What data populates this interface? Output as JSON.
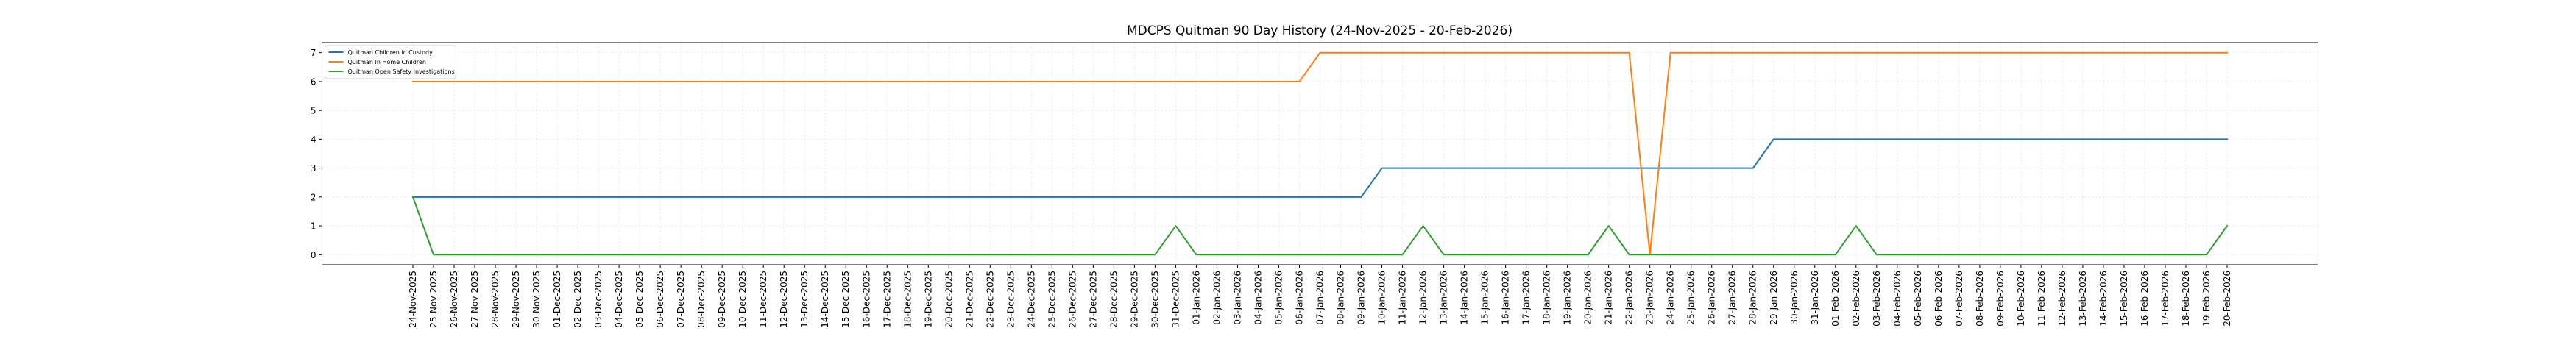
{
  "chart_data": {
    "type": "line",
    "title": "MDCPS Quitman 90 Day History (24-Nov-2025 - 20-Feb-2026)",
    "xlabel": "",
    "ylabel": "",
    "ylim": [
      -0.35,
      7.35
    ],
    "yticks": [
      0,
      1,
      2,
      3,
      4,
      5,
      6,
      7
    ],
    "grid": true,
    "legend_position": "top-left",
    "x": [
      "24-Nov-2025",
      "25-Nov-2025",
      "26-Nov-2025",
      "27-Nov-2025",
      "28-Nov-2025",
      "29-Nov-2025",
      "30-Nov-2025",
      "01-Dec-2025",
      "02-Dec-2025",
      "03-Dec-2025",
      "04-Dec-2025",
      "05-Dec-2025",
      "06-Dec-2025",
      "07-Dec-2025",
      "08-Dec-2025",
      "09-Dec-2025",
      "10-Dec-2025",
      "11-Dec-2025",
      "12-Dec-2025",
      "13-Dec-2025",
      "14-Dec-2025",
      "15-Dec-2025",
      "16-Dec-2025",
      "17-Dec-2025",
      "18-Dec-2025",
      "19-Dec-2025",
      "20-Dec-2025",
      "21-Dec-2025",
      "22-Dec-2025",
      "23-Dec-2025",
      "24-Dec-2025",
      "25-Dec-2025",
      "26-Dec-2025",
      "27-Dec-2025",
      "28-Dec-2025",
      "29-Dec-2025",
      "30-Dec-2025",
      "31-Dec-2025",
      "01-Jan-2026",
      "02-Jan-2026",
      "03-Jan-2026",
      "04-Jan-2026",
      "05-Jan-2026",
      "06-Jan-2026",
      "07-Jan-2026",
      "08-Jan-2026",
      "09-Jan-2026",
      "10-Jan-2026",
      "11-Jan-2026",
      "12-Jan-2026",
      "13-Jan-2026",
      "14-Jan-2026",
      "15-Jan-2026",
      "16-Jan-2026",
      "17-Jan-2026",
      "18-Jan-2026",
      "19-Jan-2026",
      "20-Jan-2026",
      "21-Jan-2026",
      "22-Jan-2026",
      "23-Jan-2026",
      "24-Jan-2026",
      "25-Jan-2026",
      "26-Jan-2026",
      "27-Jan-2026",
      "28-Jan-2026",
      "29-Jan-2026",
      "30-Jan-2026",
      "31-Jan-2026",
      "01-Feb-2026",
      "02-Feb-2026",
      "03-Feb-2026",
      "04-Feb-2026",
      "05-Feb-2026",
      "06-Feb-2026",
      "07-Feb-2026",
      "08-Feb-2026",
      "09-Feb-2026",
      "10-Feb-2026",
      "11-Feb-2026",
      "12-Feb-2026",
      "13-Feb-2026",
      "14-Feb-2026",
      "15-Feb-2026",
      "16-Feb-2026",
      "17-Feb-2026",
      "18-Feb-2026",
      "19-Feb-2026",
      "20-Feb-2026"
    ],
    "series": [
      {
        "name": "Quitman Children in Custody",
        "color": "#1f77b4",
        "values": [
          2,
          2,
          2,
          2,
          2,
          2,
          2,
          2,
          2,
          2,
          2,
          2,
          2,
          2,
          2,
          2,
          2,
          2,
          2,
          2,
          2,
          2,
          2,
          2,
          2,
          2,
          2,
          2,
          2,
          2,
          2,
          2,
          2,
          2,
          2,
          2,
          2,
          2,
          2,
          2,
          2,
          2,
          2,
          2,
          2,
          2,
          2,
          3,
          3,
          3,
          3,
          3,
          3,
          3,
          3,
          3,
          3,
          3,
          3,
          3,
          3,
          3,
          3,
          3,
          3,
          3,
          4,
          4,
          4,
          4,
          4,
          4,
          4,
          4,
          4,
          4,
          4,
          4,
          4,
          4,
          4,
          4,
          4,
          4,
          4,
          4,
          4,
          4,
          4
        ]
      },
      {
        "name": "Quitman In Home Children",
        "color": "#ff7f0e",
        "values": [
          6,
          6,
          6,
          6,
          6,
          6,
          6,
          6,
          6,
          6,
          6,
          6,
          6,
          6,
          6,
          6,
          6,
          6,
          6,
          6,
          6,
          6,
          6,
          6,
          6,
          6,
          6,
          6,
          6,
          6,
          6,
          6,
          6,
          6,
          6,
          6,
          6,
          6,
          6,
          6,
          6,
          6,
          6,
          6,
          7,
          7,
          7,
          7,
          7,
          7,
          7,
          7,
          7,
          7,
          7,
          7,
          7,
          7,
          7,
          7,
          0,
          7,
          7,
          7,
          7,
          7,
          7,
          7,
          7,
          7,
          7,
          7,
          7,
          7,
          7,
          7,
          7,
          7,
          7,
          7,
          7,
          7,
          7,
          7,
          7,
          7,
          7,
          7,
          7
        ]
      },
      {
        "name": "Quitman Open Safety Investigations",
        "color": "#2ca02c",
        "values": [
          2,
          0,
          0,
          0,
          0,
          0,
          0,
          0,
          0,
          0,
          0,
          0,
          0,
          0,
          0,
          0,
          0,
          0,
          0,
          0,
          0,
          0,
          0,
          0,
          0,
          0,
          0,
          0,
          0,
          0,
          0,
          0,
          0,
          0,
          0,
          0,
          0,
          1,
          0,
          0,
          0,
          0,
          0,
          0,
          0,
          0,
          0,
          0,
          0,
          1,
          0,
          0,
          0,
          0,
          0,
          0,
          0,
          0,
          1,
          0,
          0,
          0,
          0,
          0,
          0,
          0,
          0,
          0,
          0,
          0,
          1,
          0,
          0,
          0,
          0,
          0,
          0,
          0,
          0,
          0,
          0,
          0,
          0,
          0,
          0,
          0,
          0,
          0,
          1
        ]
      }
    ]
  }
}
